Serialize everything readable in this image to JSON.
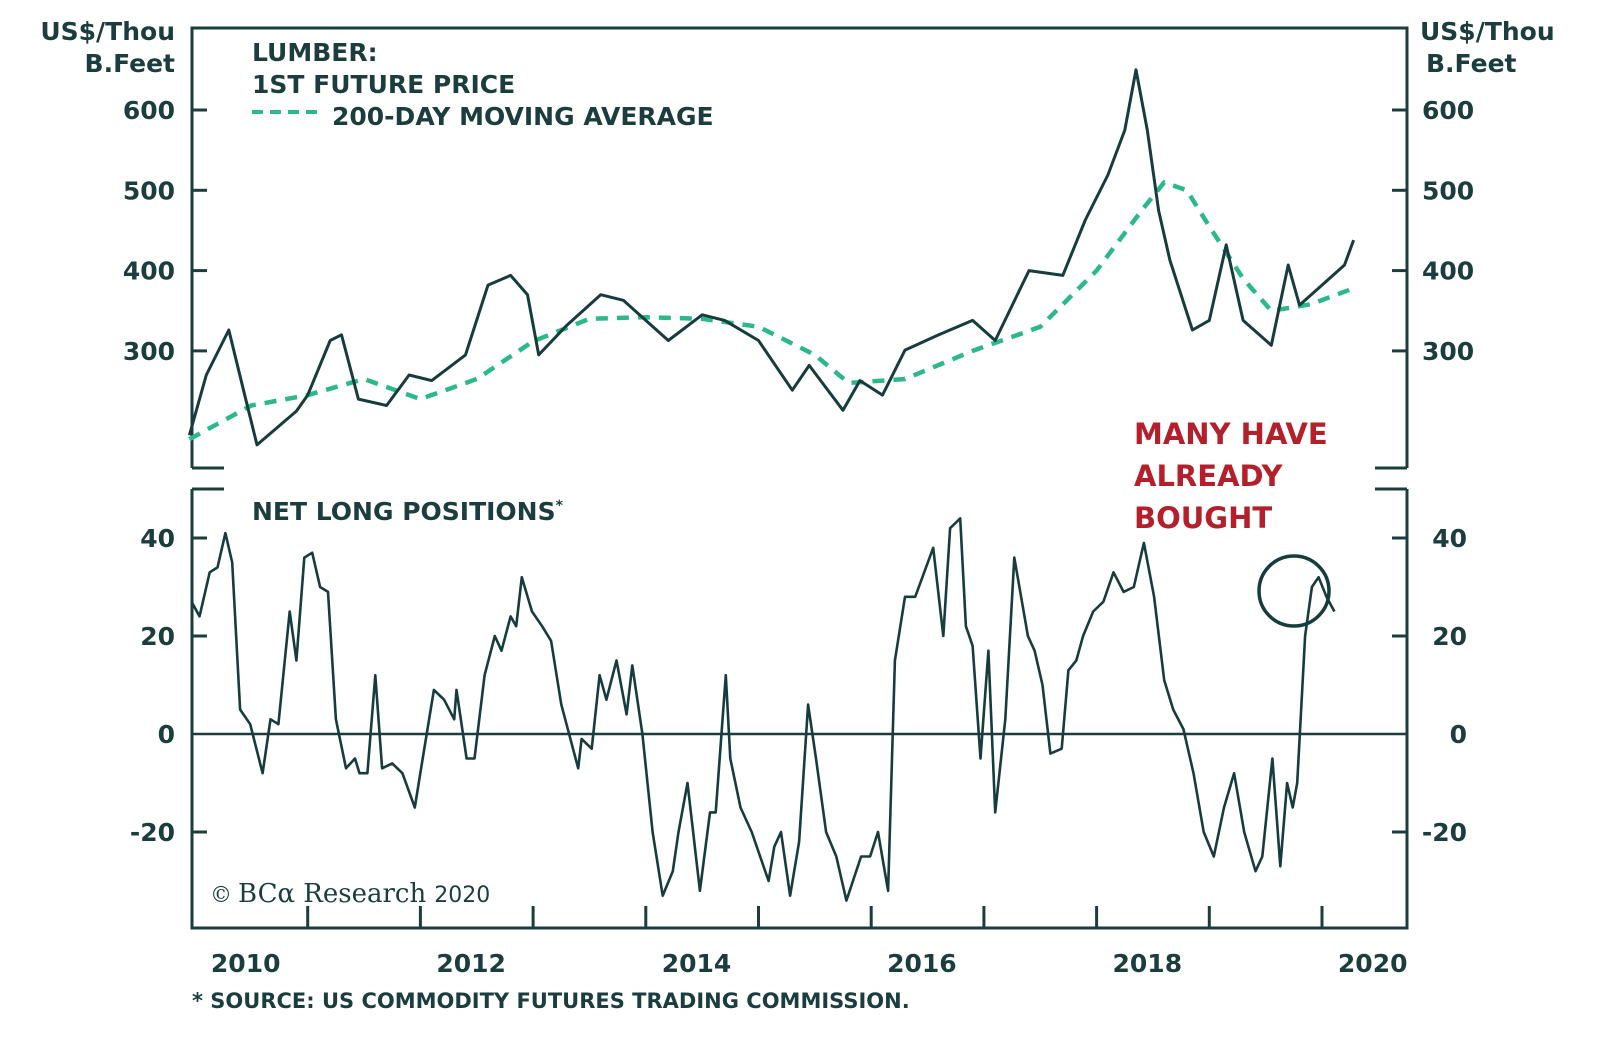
{
  "colors": {
    "axis": "#1b3d3e",
    "price_line": "#163c3d",
    "moving_average": "#2bb98a",
    "annotation": "#b3202b"
  },
  "chart_data": [
    {
      "type": "line",
      "panel": "top",
      "title": "LUMBER:",
      "subtitle": "1ST FUTURE PRICE",
      "ylabel_left": [
        "US$/Thou",
        "B.Feet"
      ],
      "ylabel_right": [
        "US$/Thou",
        "B.Feet"
      ],
      "ylim": [
        150,
        660
      ],
      "yticks": [
        300,
        400,
        500,
        600
      ],
      "xlim": [
        2009.95,
        2020.75
      ],
      "legend": [
        {
          "name": "1ST FUTURE PRICE",
          "style": "solid"
        },
        {
          "name": "200-DAY MOVING AVERAGE",
          "style": "dashed"
        }
      ],
      "series": [
        {
          "name": "1ST FUTURE PRICE",
          "x": [
            2009.95,
            2010.1,
            2010.3,
            2010.45,
            2010.55,
            2010.9,
            2011.0,
            2011.2,
            2011.3,
            2011.45,
            2011.7,
            2011.9,
            2012.1,
            2012.4,
            2012.6,
            2012.8,
            2012.95,
            2013.05,
            2013.3,
            2013.6,
            2013.8,
            2014.0,
            2014.2,
            2014.5,
            2014.7,
            2015.0,
            2015.3,
            2015.45,
            2015.75,
            2015.9,
            2016.1,
            2016.3,
            2016.6,
            2016.9,
            2017.1,
            2017.4,
            2017.7,
            2017.9,
            2018.1,
            2018.25,
            2018.35,
            2018.45,
            2018.55,
            2018.65,
            2018.85,
            2019.0,
            2019.15,
            2019.3,
            2019.55,
            2019.7,
            2019.8,
            2020.0,
            2020.2,
            2020.28
          ],
          "values": [
            195,
            270,
            326,
            240,
            183,
            225,
            245,
            313,
            320,
            240,
            232,
            270,
            263,
            295,
            382,
            394,
            370,
            295,
            332,
            370,
            363,
            338,
            313,
            345,
            338,
            313,
            251,
            282,
            226,
            263,
            245,
            301,
            320,
            338,
            313,
            400,
            394,
            463,
            519,
            575,
            650,
            575,
            475,
            413,
            326,
            338,
            432,
            338,
            307,
            407,
            357,
            382,
            407,
            438
          ]
        },
        {
          "name": "200-DAY MOVING AVERAGE",
          "x": [
            2009.95,
            2010.5,
            2011.0,
            2011.5,
            2012.0,
            2012.5,
            2013.0,
            2013.5,
            2014.0,
            2014.5,
            2015.0,
            2015.5,
            2015.8,
            2016.3,
            2016.9,
            2017.5,
            2018.0,
            2018.4,
            2018.6,
            2018.8,
            2019.0,
            2019.3,
            2019.55,
            2019.9,
            2020.28
          ],
          "values": [
            190,
            232,
            245,
            265,
            240,
            265,
            312,
            340,
            342,
            340,
            330,
            295,
            260,
            265,
            300,
            330,
            400,
            475,
            510,
            500,
            455,
            390,
            350,
            358,
            378
          ]
        }
      ]
    },
    {
      "type": "line",
      "panel": "bottom",
      "title": "NET LONG POSITIONS*",
      "ylim": [
        -40,
        50
      ],
      "yticks": [
        -20,
        0,
        20,
        40
      ],
      "xlim": [
        2009.95,
        2020.75
      ],
      "xticks": [
        2010,
        2012,
        2014,
        2016,
        2018,
        2020
      ],
      "zero_line": true,
      "annotation": {
        "text": [
          "MANY HAVE",
          "ALREADY",
          "BOUGHT"
        ],
        "circle_around": "latest values"
      },
      "series": [
        {
          "name": "NET LONG POSITIONS",
          "x": [
            2009.97,
            2010.04,
            2010.13,
            2010.2,
            2010.27,
            2010.33,
            2010.4,
            2010.49,
            2010.6,
            2010.67,
            2010.74,
            2010.84,
            2010.9,
            2010.97,
            2011.04,
            2011.11,
            2011.18,
            2011.25,
            2011.34,
            2011.42,
            2011.46,
            2011.53,
            2011.6,
            2011.66,
            2011.75,
            2011.84,
            2011.95,
            2012.02,
            2012.12,
            2012.21,
            2012.3,
            2012.32,
            2012.41,
            2012.48,
            2012.57,
            2012.66,
            2012.72,
            2012.8,
            2012.85,
            2012.9,
            2012.99,
            2013.08,
            2013.16,
            2013.25,
            2013.4,
            2013.43,
            2013.52,
            2013.59,
            2013.65,
            2013.74,
            2013.83,
            2013.88,
            2013.97,
            2014.06,
            2014.15,
            2014.24,
            2014.29,
            2014.37,
            2014.48,
            2014.57,
            2014.62,
            2014.71,
            2014.75,
            2014.84,
            2014.94,
            2015.09,
            2015.14,
            2015.2,
            2015.28,
            2015.36,
            2015.44,
            2015.51,
            2015.6,
            2015.69,
            2015.78,
            2015.91,
            2015.99,
            2016.06,
            2016.15,
            2016.21,
            2016.3,
            2016.39,
            2016.55,
            2016.64,
            2016.7,
            2016.79,
            2016.84,
            2016.9,
            2016.97,
            2017.04,
            2017.1,
            2017.19,
            2017.27,
            2017.39,
            2017.45,
            2017.52,
            2017.59,
            2017.69,
            2017.75,
            2017.82,
            2017.88,
            2017.97,
            2018.06,
            2018.15,
            2018.24,
            2018.33,
            2018.42,
            2018.51,
            2018.6,
            2018.68,
            2018.77,
            2018.86,
            2018.95,
            2019.04,
            2019.13,
            2019.22,
            2019.31,
            2019.41,
            2019.47,
            2019.56,
            2019.63,
            2019.69,
            2019.74,
            2019.78,
            2019.85,
            2019.91,
            2019.97,
            2020.04,
            2020.11
          ],
          "values": [
            27,
            24,
            33,
            34,
            41,
            35,
            5,
            2,
            -8,
            3,
            2,
            25,
            15,
            36,
            37,
            30,
            29,
            3,
            -7,
            -5,
            -8,
            -8,
            12,
            -7,
            -6,
            -8,
            -15,
            -5,
            9,
            7,
            3,
            9,
            -5,
            -5,
            12,
            20,
            17,
            24,
            22,
            32,
            25,
            22,
            19,
            6,
            -7,
            -1,
            -3,
            12,
            7,
            15,
            4,
            14,
            0,
            -20,
            -33,
            -28,
            -20,
            -10,
            -32,
            -16,
            -16,
            12,
            -5,
            -15,
            -20,
            -30,
            -23,
            -20,
            -33,
            -22,
            6,
            -5,
            -20,
            -25,
            -34,
            -25,
            -25,
            -20,
            -32,
            15,
            28,
            28,
            38,
            20,
            42,
            44,
            22,
            18,
            -5,
            17,
            -16,
            3,
            36,
            20,
            17,
            10,
            -4,
            -3,
            13,
            15,
            20,
            25,
            27,
            33,
            29,
            30,
            39,
            28,
            11,
            5,
            1,
            -8,
            -20,
            -25,
            -15,
            -8,
            -20,
            -28,
            -25,
            -5,
            -27,
            -10,
            -15,
            -10,
            20,
            30,
            32,
            28,
            25
          ]
        }
      ]
    }
  ],
  "text": {
    "y_unit_left_1": "US$/Thou",
    "y_unit_left_2": "B.Feet",
    "y_unit_right_1": "US$/Thou",
    "y_unit_right_2": "B.Feet",
    "top_title_1": "LUMBER:",
    "top_title_2": "1ST FUTURE PRICE",
    "legend_ma": "200-DAY MOVING AVERAGE",
    "bottom_title": "NET LONG POSITIONS",
    "bottom_title_mark": "*",
    "annotation_1": "MANY HAVE",
    "annotation_2": "ALREADY",
    "annotation_3": "BOUGHT",
    "credit_symbol": "©",
    "credit_brand": "BCα Research",
    "credit_year": "2020",
    "footnote": "* SOURCE: US COMMODITY FUTURES TRADING COMMISSION."
  }
}
